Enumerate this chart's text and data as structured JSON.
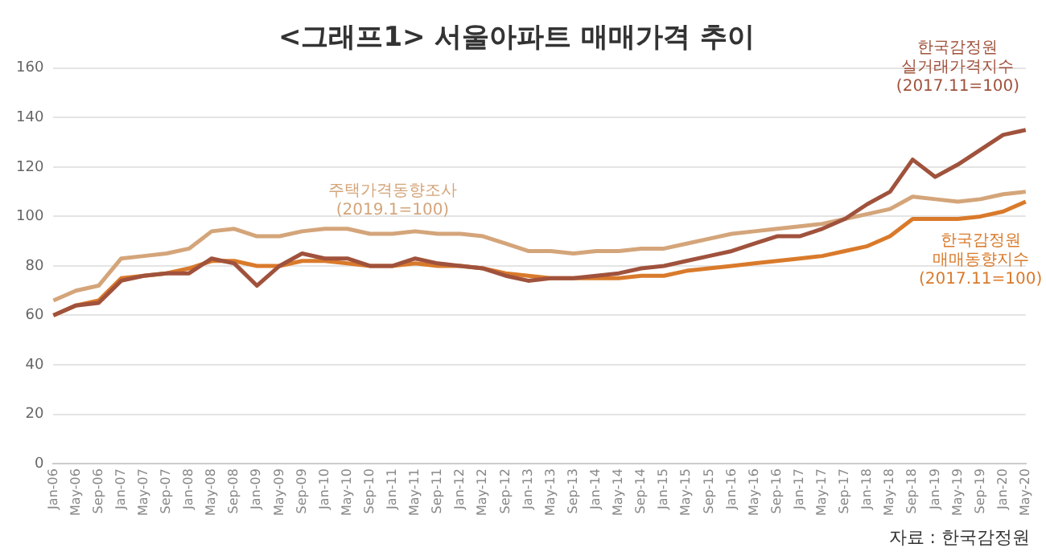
{
  "chart_data": {
    "type": "line",
    "title": "<그래프1> 서울아파트 매매가격 추이",
    "categories": [
      "Jan-06",
      "May-06",
      "Sep-06",
      "Jan-07",
      "May-07",
      "Sep-07",
      "Jan-08",
      "May-08",
      "Sep-08",
      "Jan-09",
      "May-09",
      "Sep-09",
      "Jan-10",
      "May-10",
      "Sep-10",
      "Jan-11",
      "May-11",
      "Sep-11",
      "Jan-12",
      "May-12",
      "Sep-12",
      "Jan-13",
      "May-13",
      "Sep-13",
      "Jan-14",
      "May-14",
      "Sep-14",
      "Jan-15",
      "May-15",
      "Sep-15",
      "Jan-16",
      "May-16",
      "Sep-16",
      "Jan-17",
      "May-17",
      "Sep-17",
      "Jan-18",
      "May-18",
      "Sep-18",
      "Jan-19",
      "May-19",
      "Sep-19",
      "Jan-20",
      "May-20"
    ],
    "series": [
      {
        "name": "한국감정원 실거래가격지수 (2017.11=100)",
        "color": "#a0523c",
        "values": [
          60,
          64,
          65,
          74,
          76,
          77,
          77,
          83,
          81,
          72,
          80,
          85,
          83,
          83,
          80,
          80,
          83,
          81,
          80,
          79,
          76,
          74,
          75,
          75,
          76,
          77,
          79,
          80,
          82,
          84,
          86,
          89,
          92,
          92,
          95,
          99,
          105,
          110,
          123,
          116,
          121,
          127,
          133,
          135
        ]
      },
      {
        "name": "주택가격동향조사 (2019.1=100)",
        "color": "#d4a57a",
        "values": [
          66,
          70,
          72,
          83,
          84,
          85,
          87,
          94,
          95,
          92,
          92,
          94,
          95,
          95,
          93,
          93,
          94,
          93,
          93,
          92,
          89,
          86,
          86,
          85,
          86,
          86,
          87,
          87,
          89,
          91,
          93,
          94,
          95,
          96,
          97,
          99,
          101,
          103,
          108,
          107,
          106,
          107,
          109,
          110
        ]
      },
      {
        "name": "한국감정원 매매동향지수 (2017.11=100)",
        "color": "#d97a2b",
        "values": [
          60,
          64,
          66,
          75,
          76,
          77,
          79,
          82,
          82,
          80,
          80,
          82,
          82,
          81,
          80,
          80,
          81,
          80,
          80,
          79,
          77,
          76,
          75,
          75,
          75,
          75,
          76,
          76,
          78,
          79,
          80,
          81,
          82,
          83,
          84,
          86,
          88,
          92,
          99,
          99,
          99,
          100,
          102,
          106
        ]
      }
    ],
    "ylim": [
      0,
      160
    ],
    "yticks": [
      0,
      20,
      40,
      60,
      80,
      100,
      120,
      140,
      160
    ],
    "grid": "y",
    "legend": false,
    "annotations": [
      "자료 : 한국감정원"
    ]
  }
}
